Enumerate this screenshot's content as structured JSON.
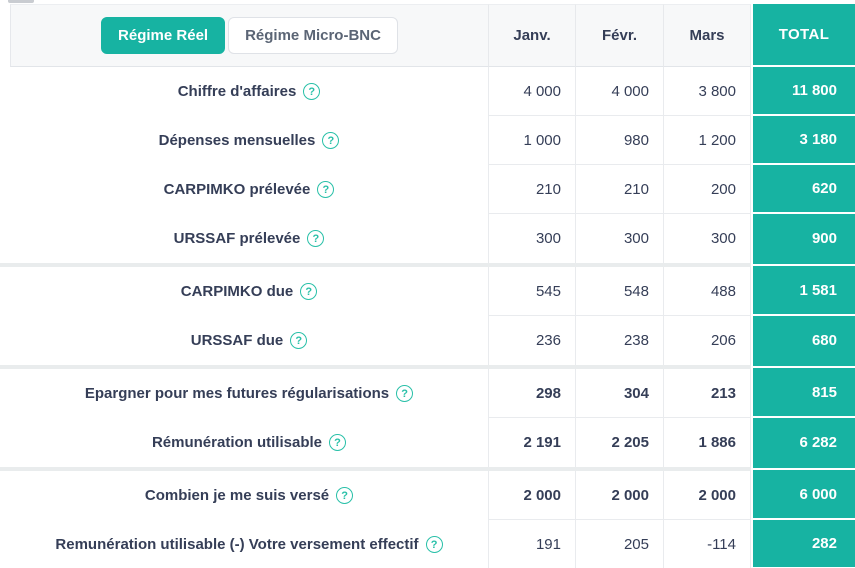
{
  "regime_tabs": {
    "active_label": "Régime Réel",
    "inactive_label": "Régime Micro-BNC"
  },
  "columns": {
    "janv": "Janv.",
    "fevr": "Févr.",
    "mars": "Mars",
    "total": "TOTAL"
  },
  "ui": {
    "help_glyph": "?"
  },
  "colors": {
    "accent_teal": "#17b3a2",
    "help_icon_teal": "#29c0a8",
    "header_bg": "#f7f8f9",
    "row_border": "#e9ebee",
    "section_separator": "#e9eced",
    "text_dark": "#353e57",
    "text_muted": "#5b6575"
  },
  "rows": [
    {
      "label": "Chiffre d'affaires",
      "values": [
        "4 000",
        "4 000",
        "3 800"
      ],
      "total": "11 800",
      "bold_values": false,
      "section_start": false
    },
    {
      "label": "Dépenses mensuelles",
      "values": [
        "1 000",
        "980",
        "1 200"
      ],
      "total": "3 180",
      "bold_values": false,
      "section_start": false
    },
    {
      "label": "CARPIMKO prélevée",
      "values": [
        "210",
        "210",
        "200"
      ],
      "total": "620",
      "bold_values": false,
      "section_start": false
    },
    {
      "label": "URSSAF prélevée",
      "values": [
        "300",
        "300",
        "300"
      ],
      "total": "900",
      "bold_values": false,
      "section_start": false
    },
    {
      "label": "CARPIMKO due",
      "values": [
        "545",
        "548",
        "488"
      ],
      "total": "1 581",
      "bold_values": false,
      "section_start": true
    },
    {
      "label": "URSSAF due",
      "values": [
        "236",
        "238",
        "206"
      ],
      "total": "680",
      "bold_values": false,
      "section_start": false
    },
    {
      "label": "Epargner pour mes futures régularisations",
      "values": [
        "298",
        "304",
        "213"
      ],
      "total": "815",
      "bold_values": true,
      "section_start": true
    },
    {
      "label": "Rémunération utilisable",
      "values": [
        "2 191",
        "2 205",
        "1 886"
      ],
      "total": "6 282",
      "bold_values": true,
      "section_start": false
    },
    {
      "label": "Combien je me suis versé",
      "values": [
        "2 000",
        "2 000",
        "2 000"
      ],
      "total": "6 000",
      "bold_values": true,
      "section_start": true
    },
    {
      "label": "Remunération utilisable (-) Votre versement effectif",
      "values": [
        "191",
        "205",
        "-114"
      ],
      "total": "282",
      "bold_values": false,
      "section_start": false
    }
  ]
}
